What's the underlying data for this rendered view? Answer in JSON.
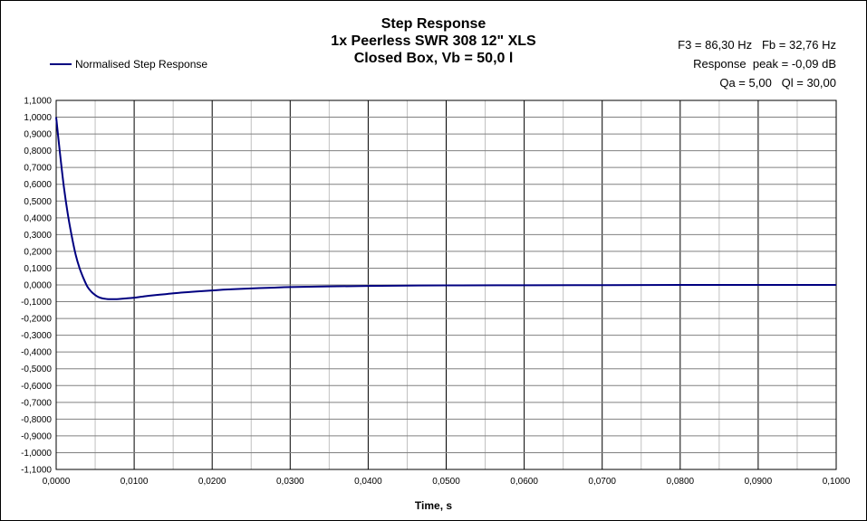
{
  "title_lines": [
    "Step Response",
    "1x Peerless  SWR 308 12\" XLS",
    "Closed Box, Vb = 50,0 l"
  ],
  "info_lines": [
    "F3 = 86,30 Hz   Fb = 32,76 Hz",
    "Response  peak = -0,09 dB",
    "Qa = 5,00   Ql = 30,00"
  ],
  "legend_label": "Normalised Step Response",
  "colors": {
    "series": "#000080",
    "major_grid": "#000000",
    "minor_grid": "#c0c0c0"
  },
  "chart_data": {
    "type": "line",
    "title": "Step Response\n1x Peerless  SWR 308 12\" XLS\nClosed Box, Vb = 50,0 l",
    "xlabel": "Time, s",
    "ylabel": "",
    "xlim": [
      0,
      0.1
    ],
    "ylim": [
      -1.1,
      1.1
    ],
    "x_ticks": [
      "0,0000",
      "0,0100",
      "0,0200",
      "0,0300",
      "0,0400",
      "0,0500",
      "0,0600",
      "0,0700",
      "0,0800",
      "0,0900",
      "0,1000"
    ],
    "y_ticks": [
      "1,1000",
      "1,0000",
      "0,9000",
      "0,8000",
      "0,7000",
      "0,6000",
      "0,5000",
      "0,4000",
      "0,3000",
      "0,2000",
      "0,1000",
      "0,0000",
      "-0,1000",
      "-0,2000",
      "-0,3000",
      "-0,4000",
      "-0,5000",
      "-0,6000",
      "-0,7000",
      "-0,8000",
      "-0,9000",
      "-1,0000",
      "-1,1000"
    ],
    "grid": true,
    "legend": "top-left",
    "series": [
      {
        "name": "Normalised Step Response",
        "x": [
          0.0,
          0.0005,
          0.001,
          0.0015,
          0.002,
          0.0025,
          0.003,
          0.0035,
          0.004,
          0.0045,
          0.005,
          0.0055,
          0.006,
          0.0065,
          0.007,
          0.0075,
          0.008,
          0.009,
          0.01,
          0.011,
          0.012,
          0.014,
          0.016,
          0.018,
          0.02,
          0.022,
          0.025,
          0.028,
          0.03,
          0.035,
          0.04,
          0.045,
          0.05,
          0.06,
          0.07,
          0.08,
          0.09,
          0.1
        ],
        "y": [
          1.0,
          0.78,
          0.58,
          0.42,
          0.29,
          0.18,
          0.1,
          0.04,
          -0.01,
          -0.04,
          -0.06,
          -0.074,
          -0.081,
          -0.084,
          -0.085,
          -0.085,
          -0.084,
          -0.08,
          -0.076,
          -0.07,
          -0.064,
          -0.055,
          -0.046,
          -0.039,
          -0.033,
          -0.027,
          -0.021,
          -0.016,
          -0.013,
          -0.009,
          -0.006,
          -0.004,
          -0.003,
          -0.002,
          -0.001,
          0.0,
          0.0,
          0.0
        ]
      }
    ]
  }
}
